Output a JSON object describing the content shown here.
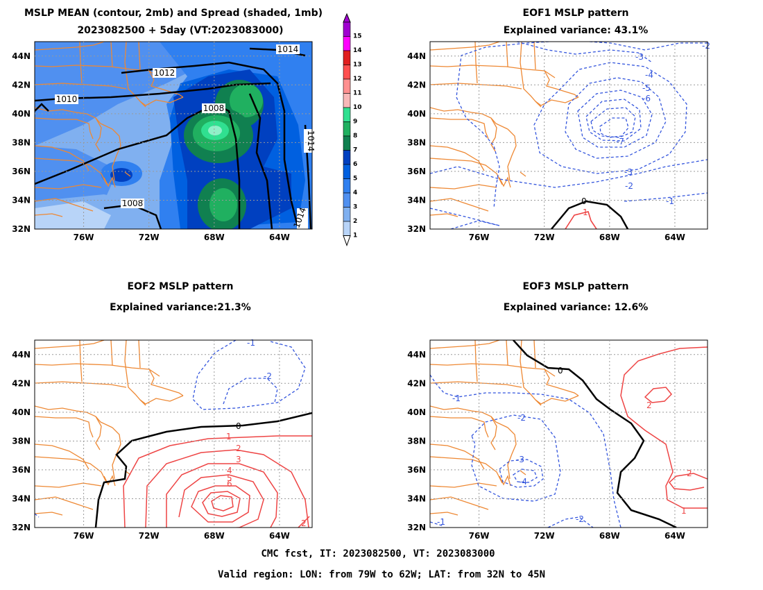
{
  "panels": {
    "mean": {
      "title_line1": "MSLP MEAN (contour, 2mb) and Spread (shaded, 1mb)",
      "title_line2": "2023082500 + 5day (VT:2023083000)",
      "contour_labels": [
        "1014",
        "1012",
        "1010",
        "1008",
        "1008",
        "1014",
        "1014"
      ]
    },
    "eof1": {
      "title": "EOF1 MSLP pattern",
      "subtitle": "Explained variance: 43.1%",
      "contour_labels": [
        "-2",
        "-3",
        "-4",
        "-5",
        "-6",
        "-7",
        "-3",
        "-2",
        "-1",
        "0",
        "1"
      ]
    },
    "eof2": {
      "title": "EOF2 MSLP pattern",
      "subtitle": "Explained variance:21.3%",
      "contour_labels": [
        "-1",
        "-2",
        "0",
        "1",
        "2",
        "3",
        "4",
        "5",
        "6",
        "2"
      ]
    },
    "eof3": {
      "title": "EOF3 MSLP pattern",
      "subtitle": "Explained variance: 12.6%",
      "contour_labels": [
        "0",
        "-1",
        "-2",
        "-3",
        "-4",
        "2",
        "2",
        "1",
        "-2",
        "-1"
      ]
    }
  },
  "axes": {
    "lat_ticks": [
      "44N",
      "42N",
      "40N",
      "38N",
      "36N",
      "34N",
      "32N"
    ],
    "lon_ticks": [
      "76W",
      "72W",
      "68W",
      "64W"
    ]
  },
  "colorbar": {
    "labels": [
      "15",
      "14",
      "13",
      "12",
      "11",
      "10",
      "9",
      "8",
      "7",
      "6",
      "5",
      "4",
      "3",
      "2",
      "1"
    ],
    "colors": [
      "#a000d0",
      "#ff00ff",
      "#e02020",
      "#ff5050",
      "#ff9090",
      "#f8b8b8",
      "#30e090",
      "#20b060",
      "#108050",
      "#0040c0",
      "#0060e0",
      "#3080f0",
      "#5090f0",
      "#80b0f0",
      "#b8d4f8"
    ]
  },
  "footer": {
    "line1": "CMC fcst, IT: 2023082500, VT: 2023083000",
    "line2": "Valid region: LON: from 79W to 62W; LAT: from 32N to 45N"
  },
  "colors": {
    "coast": "#ee8833",
    "negative": "#3355dd",
    "positive": "#ee4444",
    "zero": "#000000",
    "grid": "#999999"
  }
}
